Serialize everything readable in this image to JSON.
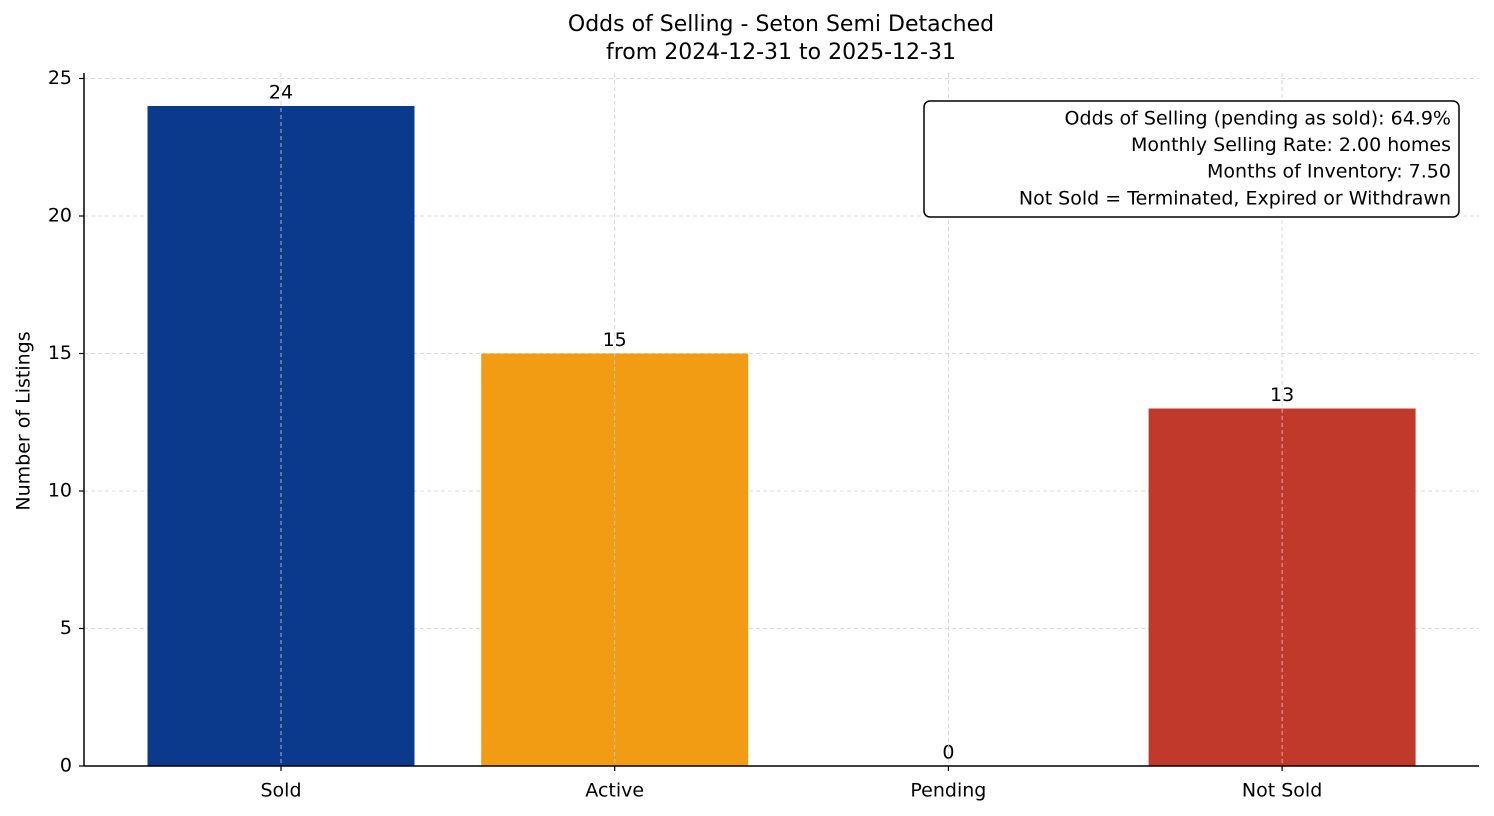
{
  "chart_data": {
    "type": "bar",
    "title": "Odds of Selling - Seton Semi Detached",
    "subtitle": "from 2024-12-31 to 2025-12-31",
    "y_label": "Number of Listings",
    "categories": [
      "Sold",
      "Active",
      "Pending",
      "Not Sold"
    ],
    "values": [
      24,
      15,
      0,
      13
    ],
    "colors": [
      "#0b3a8c",
      "#f29c13",
      "#8e44ad",
      "#c0392b"
    ],
    "ylim": [
      0,
      25.2
    ],
    "yticks": [
      0,
      5,
      10,
      15,
      20,
      25
    ],
    "grid": true,
    "annotation": [
      "Odds of Selling (pending as sold): 64.9%",
      "Monthly Selling Rate: 2.00 homes",
      "Months of Inventory: 7.50",
      "Not Sold = Terminated, Expired or Withdrawn"
    ]
  }
}
